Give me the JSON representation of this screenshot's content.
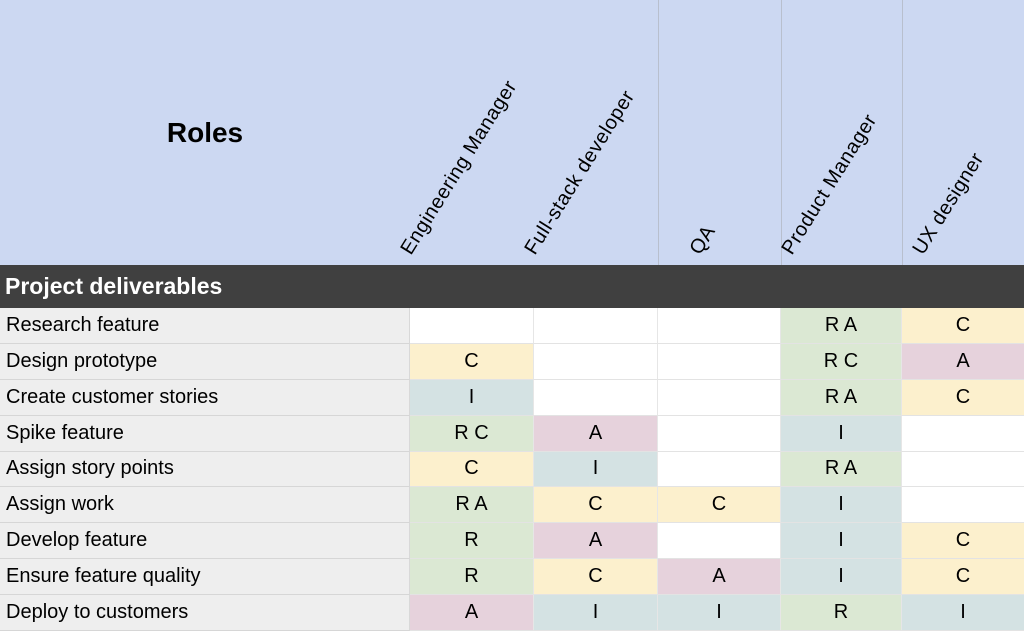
{
  "chart_data": {
    "type": "table",
    "corner_label": "Roles",
    "section_title": "Project deliverables",
    "columns": [
      "Engineering Manager",
      "Full-stack developer",
      "QA",
      "Product Manager",
      "UX designer"
    ],
    "rows": [
      {
        "label": "Research feature",
        "cells": [
          "",
          "",
          "",
          "R A",
          "C"
        ]
      },
      {
        "label": "Design prototype",
        "cells": [
          "C",
          "",
          "",
          "R C",
          "A"
        ]
      },
      {
        "label": "Create customer stories",
        "cells": [
          "I",
          "",
          "",
          "R A",
          "C"
        ]
      },
      {
        "label": "Spike feature",
        "cells": [
          "R C",
          "A",
          "",
          "I",
          ""
        ]
      },
      {
        "label": "Assign story points",
        "cells": [
          "C",
          "I",
          "",
          "R A",
          ""
        ]
      },
      {
        "label": "Assign work",
        "cells": [
          "R A",
          "C",
          "C",
          "I",
          ""
        ]
      },
      {
        "label": "Develop feature",
        "cells": [
          "R",
          "A",
          "",
          "I",
          "C"
        ]
      },
      {
        "label": "Ensure feature quality",
        "cells": [
          "R",
          "C",
          "A",
          "I",
          "C"
        ]
      },
      {
        "label": "Deploy to customers",
        "cells": [
          "A",
          "I",
          "I",
          "R",
          "I"
        ]
      }
    ],
    "cell_colors": {
      "R": "#dbe8d3",
      "A": "#e6d2dc",
      "C": "#fcf0cd",
      "I": "#d4e2e3",
      "blank": "#ffffff"
    },
    "layout_colors": {
      "header_bg": "#ccd8f2",
      "header_divider": "#b8bfce",
      "section_bg": "#404040",
      "section_text": "#ffffff",
      "row_label_bg": "#eeeeee"
    }
  }
}
